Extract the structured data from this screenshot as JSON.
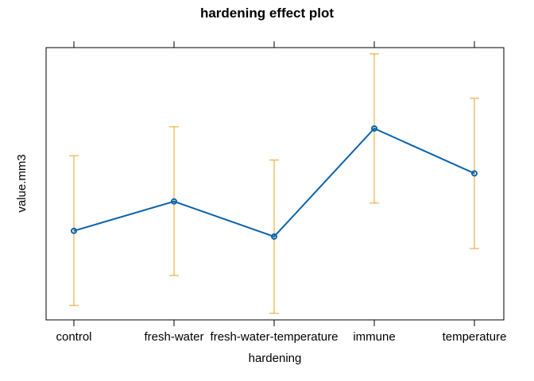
{
  "chart_data": {
    "type": "line",
    "title": "hardening effect plot",
    "xlabel": "hardening",
    "ylabel": "value.mm3",
    "categories": [
      "control",
      "fresh-water",
      "fresh-water-temperature",
      "immune",
      "temperature"
    ],
    "y_tick_labels_shown": false,
    "grid": false,
    "legend": "none",
    "ylim": [
      0,
      1
    ],
    "series": [
      {
        "values": [
          0.327,
          0.435,
          0.306,
          0.703,
          0.538
        ],
        "lower": [
          0.053,
          0.163,
          0.024,
          0.429,
          0.262
        ],
        "upper": [
          0.603,
          0.709,
          0.587,
          0.977,
          0.814
        ]
      }
    ],
    "colors": {
      "line": "#0a63ad",
      "error_bars": "#e8a020",
      "frame": "#000000"
    }
  }
}
